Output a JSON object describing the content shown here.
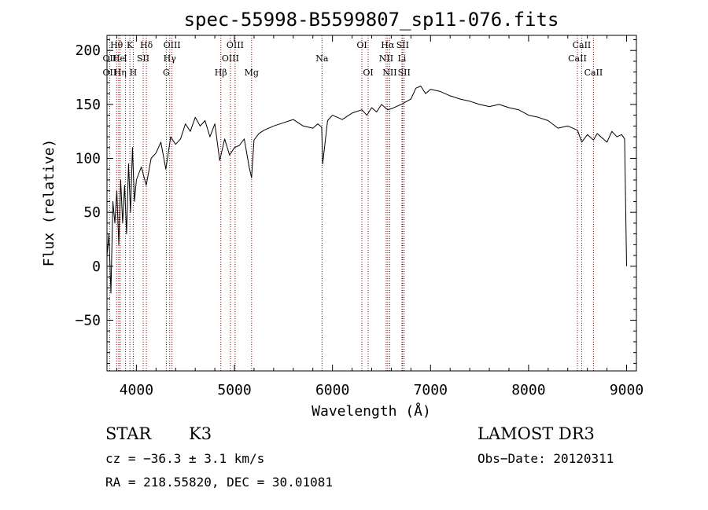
{
  "chart_data": {
    "type": "line",
    "title": "spec-55998-B5599807_sp11-076.fits",
    "xlabel": "Wavelength (Å)",
    "ylabel": "Flux (relative)",
    "xlim": [
      3700,
      9100
    ],
    "ylim": [
      -97,
      214
    ],
    "xticks": [
      4000,
      5000,
      6000,
      7000,
      8000,
      9000
    ],
    "yticks": [
      -50,
      0,
      50,
      100,
      150,
      200
    ],
    "grid": false,
    "series": [
      {
        "x": [
          3700,
          3720,
          3740,
          3760,
          3780,
          3800,
          3820,
          3840,
          3860,
          3880,
          3900,
          3920,
          3940,
          3960,
          3980,
          4000,
          4050,
          4100,
          4150,
          4200,
          4250,
          4300,
          4350,
          4400,
          4450,
          4500,
          4550,
          4600,
          4650,
          4700,
          4750,
          4800,
          4850,
          4900,
          4950,
          5000,
          5050,
          5100,
          5150,
          5175,
          5200,
          5250,
          5300,
          5400,
          5500,
          5600,
          5700,
          5800,
          5850,
          5890,
          5900,
          5950,
          6000,
          6100,
          6200,
          6300,
          6350,
          6400,
          6450,
          6500,
          6563,
          6600,
          6700,
          6800,
          6850,
          6900,
          6950,
          7000,
          7100,
          7200,
          7300,
          7400,
          7500,
          7600,
          7700,
          7800,
          7900,
          8000,
          8100,
          8200,
          8300,
          8400,
          8500,
          8542,
          8600,
          8662,
          8700,
          8800,
          8850,
          8900,
          8950,
          8980,
          9000
        ],
        "y": [
          10,
          30,
          -25,
          60,
          40,
          70,
          20,
          80,
          40,
          75,
          30,
          95,
          50,
          110,
          60,
          80,
          92,
          75,
          100,
          105,
          115,
          90,
          120,
          113,
          118,
          132,
          125,
          138,
          130,
          135,
          120,
          132,
          98,
          118,
          103,
          110,
          112,
          118,
          92,
          82,
          117,
          123,
          126,
          130,
          133,
          136,
          130,
          128,
          132,
          129,
          95,
          135,
          140,
          136,
          142,
          145,
          140,
          147,
          143,
          150,
          145,
          146,
          150,
          155,
          165,
          167,
          160,
          164,
          162,
          158,
          155,
          153,
          150,
          148,
          150,
          147,
          145,
          140,
          138,
          135,
          128,
          130,
          126,
          115,
          122,
          117,
          123,
          115,
          125,
          120,
          122,
          118,
          0
        ]
      }
    ],
    "spectral_lines": [
      {
        "label": "Hθ",
        "wavelength": 3798,
        "row": 1
      },
      {
        "label": "OII",
        "wavelength": 3727,
        "row": 2
      },
      {
        "label": "He",
        "wavelength": 3820,
        "row": 2
      },
      {
        "label": "OII",
        "wavelength": 3727,
        "row": 3
      },
      {
        "label": "Hη",
        "wavelength": 3835,
        "row": 3
      },
      {
        "label": "K",
        "wavelength": 3934,
        "row": 1
      },
      {
        "label": "I",
        "wavelength": 3889,
        "row": 2
      },
      {
        "label": "H",
        "wavelength": 3968,
        "row": 3
      },
      {
        "label": "SII",
        "wavelength": 4069,
        "row": 2
      },
      {
        "label": "Hδ",
        "wavelength": 4102,
        "row": 1
      },
      {
        "label": "OIII",
        "wavelength": 4363,
        "row": 1
      },
      {
        "label": "Hγ",
        "wavelength": 4340,
        "row": 2
      },
      {
        "label": "G",
        "wavelength": 4305,
        "row": 3
      },
      {
        "label": "Hβ",
        "wavelength": 4861,
        "row": 3
      },
      {
        "label": "OIII",
        "wavelength": 5007,
        "row": 1
      },
      {
        "label": "OIII",
        "wavelength": 4959,
        "row": 2
      },
      {
        "label": "Mg",
        "wavelength": 5175,
        "row": 3
      },
      {
        "label": "Na",
        "wavelength": 5893,
        "row": 2
      },
      {
        "label": "OI",
        "wavelength": 6300,
        "row": 1
      },
      {
        "label": "OI",
        "wavelength": 6364,
        "row": 3
      },
      {
        "label": "Hα",
        "wavelength": 6563,
        "row": 1
      },
      {
        "label": "SII",
        "wavelength": 6716,
        "row": 1
      },
      {
        "label": "NII",
        "wavelength": 6548,
        "row": 2
      },
      {
        "label": "Li",
        "wavelength": 6708,
        "row": 2
      },
      {
        "label": "NII",
        "wavelength": 6584,
        "row": 3
      },
      {
        "label": "SII",
        "wavelength": 6731,
        "row": 3
      },
      {
        "label": "CaII",
        "wavelength": 8542,
        "row": 1
      },
      {
        "label": "CaII",
        "wavelength": 8498,
        "row": 2
      },
      {
        "label": "CaII",
        "wavelength": 8662,
        "row": 3
      }
    ]
  },
  "info": {
    "object_class": "STAR",
    "subclass": "K3",
    "survey": "LAMOST DR3",
    "redshift": "cz = −36.3 ± 3.1 km/s",
    "obs_date": "Obs−Date: 20120311",
    "coords": "RA = 218.55820, DEC =  30.01081"
  },
  "colors": {
    "spectrum": "#000000",
    "line_markers": "#8b0000"
  }
}
